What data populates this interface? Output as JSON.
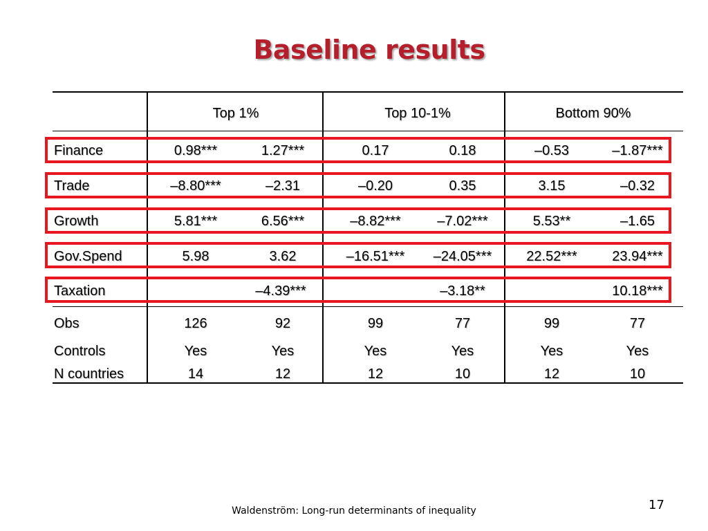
{
  "slide": {
    "title": "Baseline results",
    "footer": "Waldenström: Long-run determinants of inequality",
    "page_number": "17",
    "highlight_color": "#e8161f",
    "title_color": "#b51f2b"
  },
  "table": {
    "headers": [
      "Top 1%",
      "Top 10-1%",
      "Bottom 90%"
    ],
    "rows": [
      {
        "label": "Finance",
        "values": [
          "0.98***",
          "1.27***",
          "0.17",
          "0.18",
          "–0.53",
          "–1.87***"
        ]
      },
      {
        "label": "Trade",
        "values": [
          "–8.80***",
          "–2.31",
          "–0.20",
          "0.35",
          "3.15",
          "–0.32"
        ]
      },
      {
        "label": "Growth",
        "values": [
          "5.81***",
          "6.56***",
          "–8.82***",
          "–7.02***",
          "5.53**",
          "–1.65"
        ]
      },
      {
        "label": "Gov.Spend",
        "values": [
          "5.98",
          "3.62",
          "–16.51***",
          "–24.05***",
          "22.52***",
          "23.94***"
        ]
      },
      {
        "label": "Taxation",
        "values": [
          "",
          "–4.39***",
          "",
          "–3.18**",
          "",
          "10.18***"
        ]
      },
      {
        "label": "Obs",
        "values": [
          "126",
          "92",
          "99",
          "77",
          "99",
          "77"
        ]
      },
      {
        "label": "Controls",
        "values": [
          "Yes",
          "Yes",
          "Yes",
          "Yes",
          "Yes",
          "Yes"
        ]
      },
      {
        "label": "N countries",
        "values": [
          "14",
          "12",
          "12",
          "10",
          "12",
          "10"
        ]
      }
    ]
  }
}
